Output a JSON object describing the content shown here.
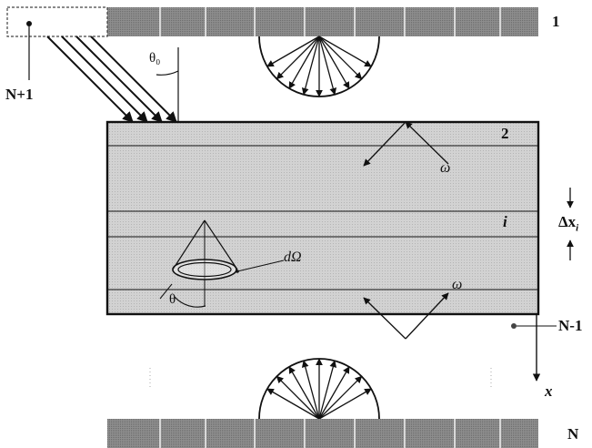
{
  "diagram": {
    "labels": {
      "surface_top": "1",
      "surface_bottom": "N",
      "source": "N+1",
      "layer_2": "2",
      "layer_i": "i",
      "layer_n_minus_1": "N-1",
      "incidence_angle": "θ₀",
      "delta_x": "Δx",
      "delta_x_sub": "i",
      "omega_top": "ω",
      "omega_bottom": "ω",
      "solid_angle": "dΩ",
      "theta": "θ",
      "x_axis": "x"
    },
    "colors": {
      "ink": "#111111",
      "slab_fill": "#cfcfcf",
      "wall_fill": "#8a8a8a",
      "wall_divider": "#d8d8d8",
      "background": "#ffffff"
    },
    "icons": [
      "hemisphere-emission-icon",
      "cone-solid-angle-icon"
    ]
  }
}
